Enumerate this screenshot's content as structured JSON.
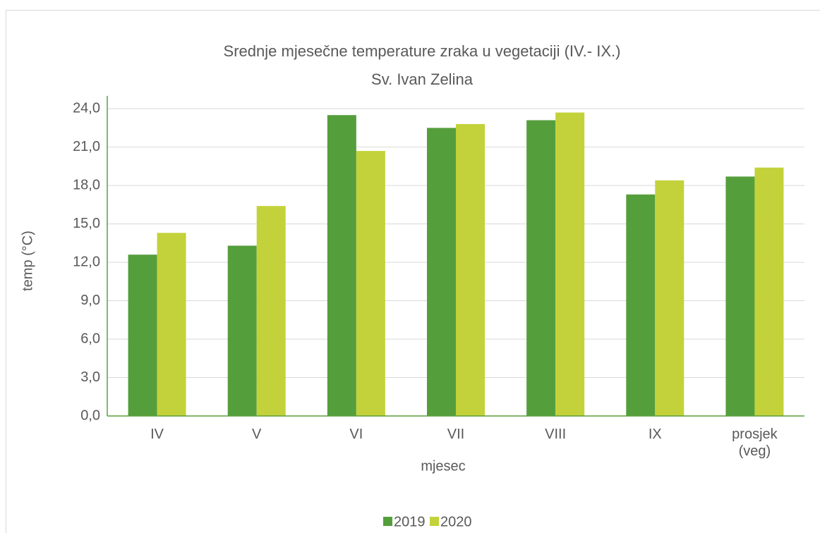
{
  "chart_data": {
    "type": "bar",
    "title": "Srednje mjesečne temperature zraka u vegetaciji (IV.- IX.)",
    "subtitle": "Sv. Ivan Zelina",
    "x_label": "mjesec",
    "y_label": "temp (°C)",
    "categories": [
      "IV",
      "V",
      "VI",
      "VII",
      "VIII",
      "IX",
      "prosjek (veg)"
    ],
    "series": [
      {
        "name": "2019",
        "color": "#559e3c",
        "values": [
          12.6,
          13.3,
          23.5,
          22.5,
          23.1,
          17.3,
          18.7
        ]
      },
      {
        "name": "2020",
        "color": "#c3d23a",
        "values": [
          14.3,
          16.4,
          20.7,
          22.8,
          23.7,
          18.4,
          19.4
        ]
      }
    ],
    "ylim": [
      0,
      25
    ],
    "yticks": [
      {
        "value": 0,
        "label": "0,0"
      },
      {
        "value": 3,
        "label": "3,0"
      },
      {
        "value": 6,
        "label": "6,0"
      },
      {
        "value": 9,
        "label": "9,0"
      },
      {
        "value": 12,
        "label": "12,0"
      },
      {
        "value": 15,
        "label": "15,0"
      },
      {
        "value": 18,
        "label": "18,0"
      },
      {
        "value": 21,
        "label": "21,0"
      },
      {
        "value": 24,
        "label": "24,0"
      }
    ],
    "grid": true,
    "legend": "bottom"
  }
}
